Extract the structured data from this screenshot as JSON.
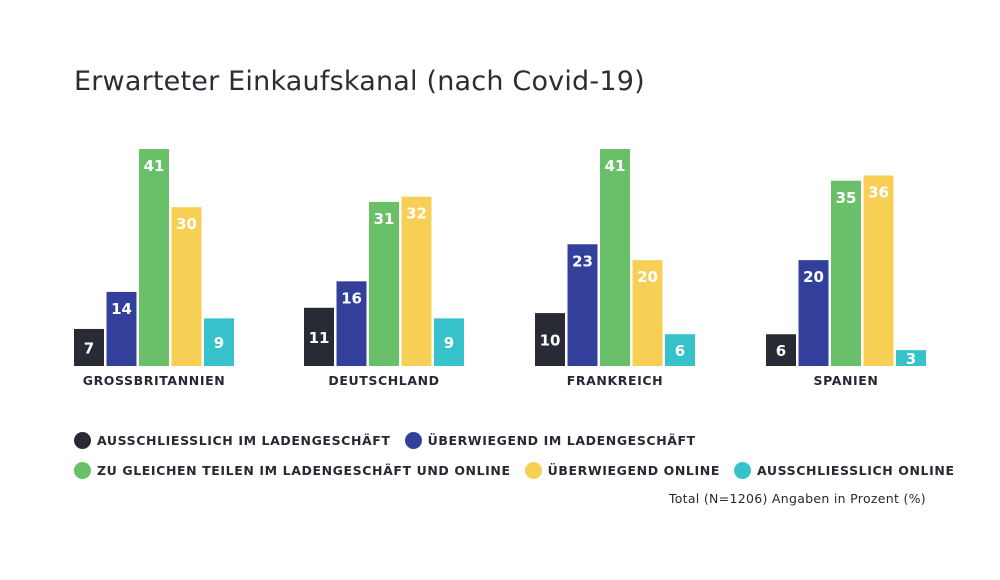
{
  "chart_data": {
    "type": "bar",
    "title": "Erwarteter Einkaufskanal (nach Covid-19)",
    "categories": [
      "GROSSBRITANNIEN",
      "DEUTSCHLAND",
      "FRANKREICH",
      "SPANIEN"
    ],
    "series": [
      {
        "name": "AUSSCHLIESSLICH IM LADENGESCHÄFT",
        "color": "#282a35",
        "values": [
          7,
          11,
          10,
          6
        ]
      },
      {
        "name": "ÜBERWIEGEND IM LADENGESCHÄFT",
        "color": "#33409b",
        "values": [
          14,
          16,
          23,
          20
        ]
      },
      {
        "name": "ZU GLEICHEN TEILEN IM LADENGESCHÄFT UND ONLINE",
        "color": "#6abf69",
        "values": [
          41,
          31,
          41,
          35
        ]
      },
      {
        "name": "ÜBERWIEGEND ONLINE",
        "color": "#f7cf55",
        "values": [
          30,
          32,
          20,
          36
        ]
      },
      {
        "name": "AUSSCHLIESSLICH ONLINE",
        "color": "#36c1cb",
        "values": [
          9,
          9,
          6,
          3
        ]
      }
    ],
    "ylim": [
      0,
      41
    ],
    "grid": false,
    "legend_position": "bottom"
  },
  "footnote": "Total (N=1206) Angaben in Prozent (%)"
}
